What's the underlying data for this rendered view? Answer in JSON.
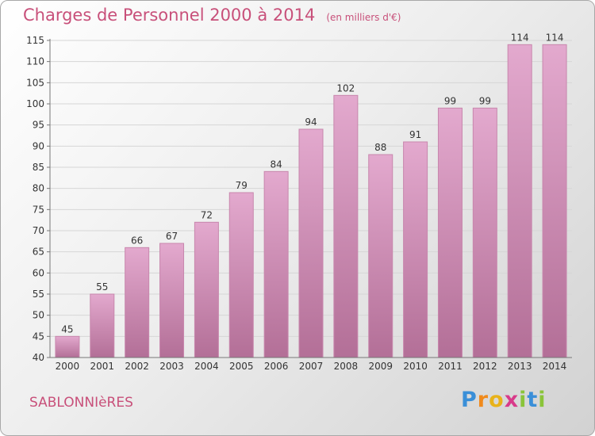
{
  "title": "Charges de Personnel 2000 à 2014",
  "unit": "(en milliers d'€)",
  "town": "SABLONNIèRES",
  "logo": {
    "letters": [
      {
        "ch": "P",
        "color": "#3a8fd8"
      },
      {
        "ch": "r",
        "color": "#f08a1c"
      },
      {
        "ch": "o",
        "color": "#e8b21a"
      },
      {
        "ch": "x",
        "color": "#d83a8a"
      },
      {
        "ch": "i",
        "color": "#8ac43a"
      },
      {
        "ch": "t",
        "color": "#3a8fd8"
      },
      {
        "ch": "i",
        "color": "#8ac43a"
      }
    ]
  },
  "colors": {
    "bar_top": "#e3a9ce",
    "bar_bottom": "#b36f97",
    "bar_edge": "#c887ad",
    "title": "#c8507a",
    "text": "#333333"
  },
  "chart_data": {
    "type": "bar",
    "title": "Charges de Personnel 2000 à 2014",
    "subtitle": "(en milliers d'€)",
    "categories": [
      "2000",
      "2001",
      "2002",
      "2003",
      "2004",
      "2005",
      "2006",
      "2007",
      "2008",
      "2009",
      "2010",
      "2011",
      "2012",
      "2013",
      "2014"
    ],
    "values": [
      45,
      55,
      66,
      67,
      72,
      79,
      84,
      94,
      102,
      88,
      91,
      99,
      99,
      114,
      114
    ],
    "ylim": [
      40,
      115
    ],
    "yticks": [
      40,
      45,
      50,
      55,
      60,
      65,
      70,
      75,
      80,
      85,
      90,
      95,
      100,
      105,
      110,
      115
    ],
    "grid": true,
    "xlabel": "",
    "ylabel": ""
  }
}
